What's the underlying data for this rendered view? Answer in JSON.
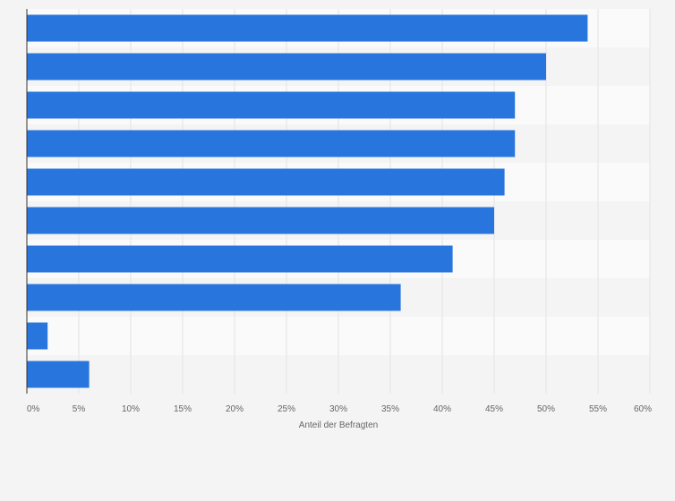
{
  "chart_data": {
    "type": "bar",
    "orientation": "horizontal",
    "categories": [
      "",
      "",
      "",
      "",
      "",
      "",
      "",
      "",
      "",
      ""
    ],
    "values": [
      54,
      50,
      47,
      47,
      46,
      45,
      41,
      36,
      2,
      6
    ],
    "xlabel": "Anteil der Befragten",
    "ylabel": "",
    "xlim": [
      0,
      60
    ],
    "ticks": [
      {
        "value": 0,
        "label": "0%"
      },
      {
        "value": 5,
        "label": "5%"
      },
      {
        "value": 10,
        "label": "10%"
      },
      {
        "value": 15,
        "label": "15%"
      },
      {
        "value": 20,
        "label": "20%"
      },
      {
        "value": 25,
        "label": "25%"
      },
      {
        "value": 30,
        "label": "30%"
      },
      {
        "value": 35,
        "label": "35%"
      },
      {
        "value": 40,
        "label": "40%"
      },
      {
        "value": 45,
        "label": "45%"
      },
      {
        "value": 50,
        "label": "50%"
      },
      {
        "value": 55,
        "label": "55%"
      },
      {
        "value": 60,
        "label": "60%"
      }
    ],
    "grid": true,
    "legend": "none",
    "colors": {
      "bar": "#2876dd",
      "band_light": "#fafafa",
      "band_dark": "#f4f4f4",
      "grid": "#e3e3e3",
      "axis": "#333333"
    }
  }
}
